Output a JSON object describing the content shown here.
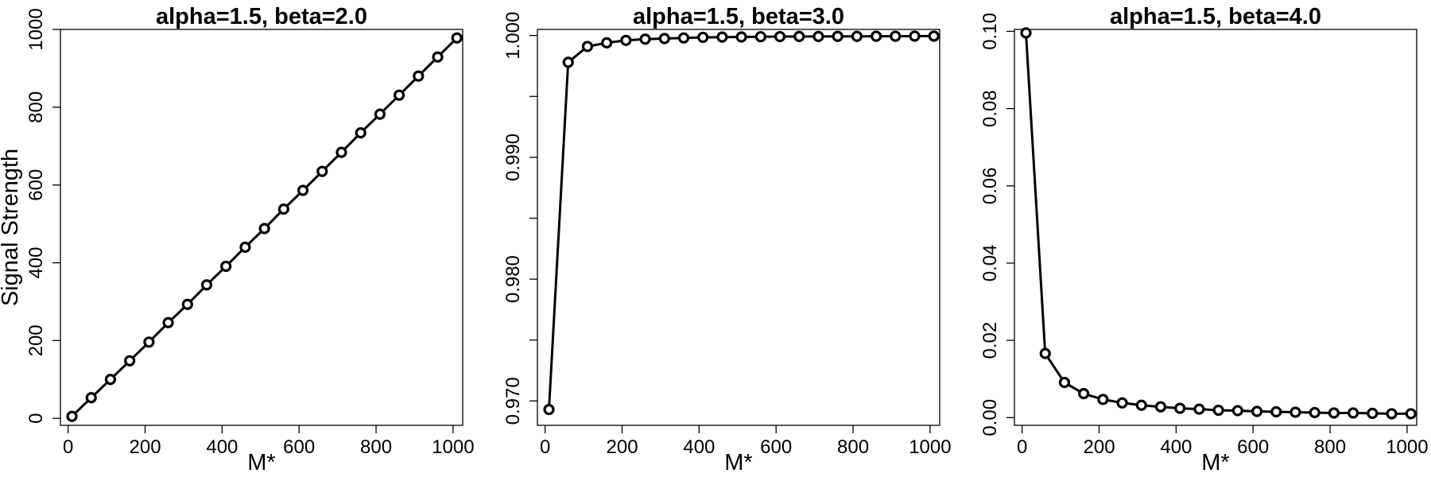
{
  "chart_data": [
    {
      "type": "line",
      "title": "alpha=1.5, beta=2.0",
      "xlabel": "M*",
      "ylabel": "Signal Strength",
      "xlim": [
        -20,
        1025
      ],
      "ylim": [
        -18,
        1000
      ],
      "xticks": [
        "0",
        "200",
        "400",
        "600",
        "800",
        "1000"
      ],
      "xtick_values": [
        0,
        200,
        400,
        600,
        800,
        1000
      ],
      "yticks": [
        "0",
        "200",
        "400",
        "600",
        "800",
        "1000"
      ],
      "ytick_values": [
        0,
        200,
        400,
        600,
        800,
        1000
      ],
      "grid": false,
      "series": [
        {
          "x": [
            10,
            60,
            110,
            160,
            210,
            260,
            310,
            360,
            410,
            460,
            510,
            560,
            610,
            660,
            710,
            760,
            810,
            860,
            910,
            960,
            1010
          ],
          "y": [
            5,
            53,
            100,
            148,
            196,
            246,
            293,
            343,
            391,
            440,
            488,
            538,
            586,
            635,
            684,
            734,
            782,
            831,
            880,
            929,
            978
          ]
        }
      ]
    },
    {
      "type": "line",
      "title": "alpha=1.5, beta=3.0",
      "xlabel": "M*",
      "ylabel": "",
      "xlim": [
        -20,
        1025
      ],
      "ylim": [
        0.968,
        1.0005
      ],
      "xticks": [
        "0",
        "200",
        "400",
        "600",
        "800",
        "1000"
      ],
      "xtick_values": [
        0,
        200,
        400,
        600,
        800,
        1000
      ],
      "yticks": [
        "0.970",
        "0.980",
        "0.990",
        "1.000"
      ],
      "ytick_values": [
        0.97,
        0.98,
        0.99,
        1.0
      ],
      "yminor_values": [
        0.975,
        0.985,
        0.995
      ],
      "grid": false,
      "series": [
        {
          "x": [
            10,
            60,
            110,
            160,
            210,
            260,
            310,
            360,
            410,
            460,
            510,
            560,
            610,
            660,
            710,
            760,
            810,
            860,
            910,
            960,
            1010
          ],
          "y": [
            0.9693,
            0.9978,
            0.9991,
            0.9994,
            0.9996,
            0.9997,
            0.99975,
            0.9998,
            0.99985,
            0.99987,
            0.99988,
            0.9999,
            0.99991,
            0.99992,
            0.99992,
            0.99993,
            0.99993,
            0.99994,
            0.99994,
            0.99995,
            0.99995
          ]
        }
      ]
    },
    {
      "type": "line",
      "title": "alpha=1.5, beta=4.0",
      "xlabel": "M*",
      "ylabel": "",
      "xlim": [
        -20,
        1025
      ],
      "ylim": [
        -0.002,
        0.1005
      ],
      "xticks": [
        "0",
        "200",
        "400",
        "600",
        "800",
        "1000"
      ],
      "xtick_values": [
        0,
        200,
        400,
        600,
        800,
        1000
      ],
      "yticks": [
        "0.00",
        "0.02",
        "0.04",
        "0.06",
        "0.08",
        "0.10"
      ],
      "ytick_values": [
        0,
        0.02,
        0.04,
        0.06,
        0.08,
        0.1
      ],
      "grid": false,
      "series": [
        {
          "x": [
            10,
            60,
            110,
            160,
            210,
            260,
            310,
            360,
            410,
            460,
            510,
            560,
            610,
            660,
            710,
            760,
            810,
            860,
            910,
            960,
            1010
          ],
          "y": [
            0.0996,
            0.0166,
            0.0091,
            0.0062,
            0.0047,
            0.0038,
            0.0032,
            0.0028,
            0.0024,
            0.0022,
            0.0019,
            0.0018,
            0.0016,
            0.0015,
            0.0014,
            0.0013,
            0.0012,
            0.0012,
            0.0011,
            0.001,
            0.001
          ]
        }
      ]
    }
  ]
}
